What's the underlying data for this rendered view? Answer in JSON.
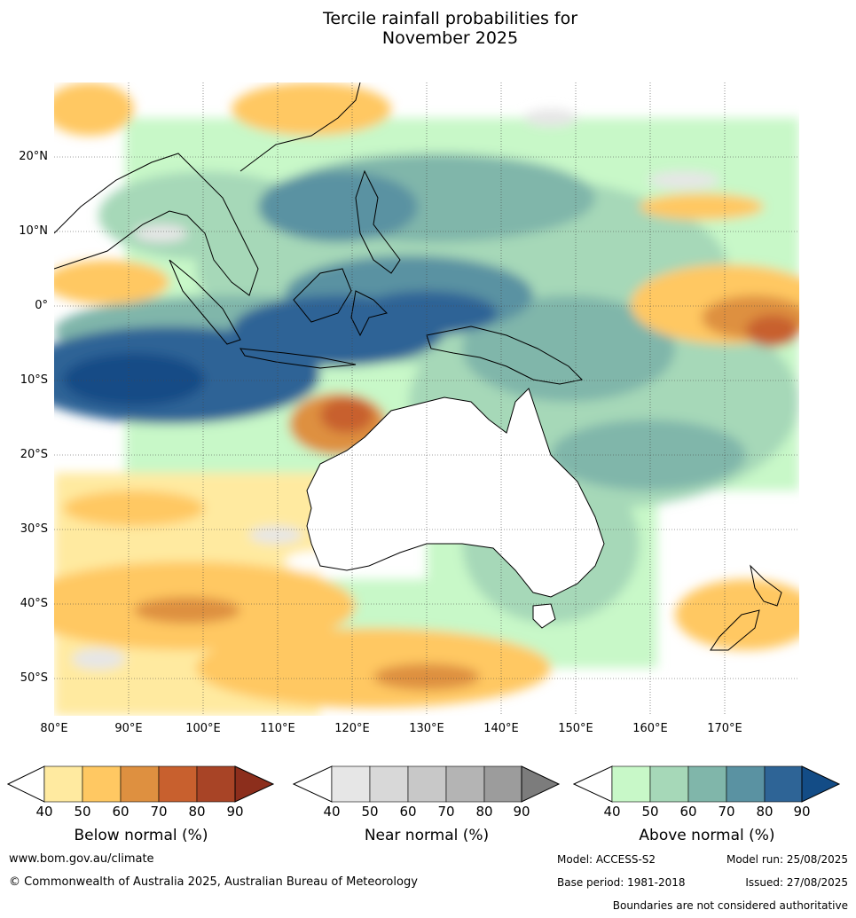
{
  "title_line1": "Tercile rainfall probabilities for",
  "title_line2": "November 2025",
  "map": {
    "lat_labels": [
      "20°N",
      "10°N",
      "0°",
      "10°S",
      "20°S",
      "30°S",
      "40°S",
      "50°S"
    ],
    "lon_labels": [
      "80°E",
      "90°E",
      "100°E",
      "110°E",
      "120°E",
      "130°E",
      "140°E",
      "150°E",
      "160°E",
      "170°E"
    ],
    "lat_range": [
      -55,
      30
    ],
    "lon_range": [
      80,
      180
    ]
  },
  "legends": {
    "below": {
      "title": "Below normal (%)",
      "ticks": [
        "40",
        "50",
        "60",
        "70",
        "80",
        "90"
      ],
      "colors": [
        "#ffeaa0",
        "#ffc862",
        "#de9040",
        "#c8602e",
        "#a84426",
        "#8c2e1c"
      ]
    },
    "near": {
      "title": "Near normal (%)",
      "ticks": [
        "40",
        "50",
        "60",
        "70",
        "80",
        "90"
      ],
      "colors": [
        "#e6e6e6",
        "#d8d8d8",
        "#c8c8c8",
        "#b4b4b4",
        "#9c9c9c",
        "#7c7c7c"
      ]
    },
    "above": {
      "title": "Above normal (%)",
      "ticks": [
        "40",
        "50",
        "60",
        "70",
        "80",
        "90"
      ],
      "colors": [
        "#c8f8c8",
        "#a6d8b8",
        "#80b6aa",
        "#5a92a2",
        "#2e6496",
        "#134c86"
      ]
    }
  },
  "footer": {
    "website": "www.bom.gov.au/climate",
    "copyright": "© Commonwealth of Australia 2025, Australian Bureau of Meteorology",
    "model": "Model: ACCESS-S2",
    "model_run": "Model run: 25/08/2025",
    "base_period": "Base period: 1981-2018",
    "issued": "Issued: 27/08/2025",
    "disclaimer": "Boundaries are not considered authoritative"
  }
}
